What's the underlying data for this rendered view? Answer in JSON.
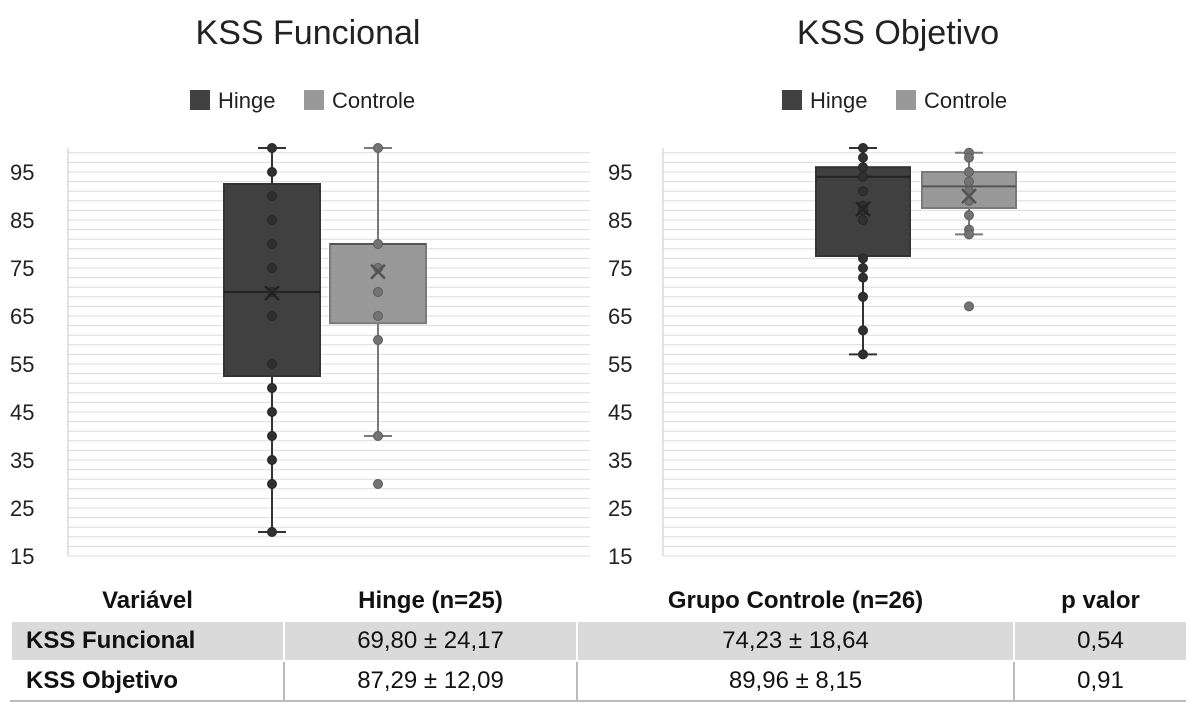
{
  "chart_data": [
    {
      "type": "box",
      "title": "KSS Funcional",
      "legend": [
        {
          "name": "Hinge",
          "color": "#404040"
        },
        {
          "name": "Controle",
          "color": "#999999"
        }
      ],
      "legend_position": "top",
      "ylim": [
        15,
        100
      ],
      "yticks": [
        15,
        25,
        35,
        45,
        55,
        65,
        75,
        85,
        95
      ],
      "grid": true,
      "series": [
        {
          "name": "Hinge",
          "color": "#404040",
          "min": 20,
          "q1": 52.5,
          "median": 70,
          "q3": 92.5,
          "max": 100,
          "mean": 69.8,
          "points": [
            100,
            95,
            90,
            85,
            80,
            75,
            70,
            65,
            55,
            50,
            45,
            40,
            35,
            30,
            20
          ]
        },
        {
          "name": "Controle",
          "color": "#999999",
          "min": 40,
          "q1": 63.5,
          "median": 80,
          "q3": 80,
          "max": 100,
          "mean": 74.23,
          "points": [
            100,
            80,
            75,
            70,
            65,
            60,
            40,
            30
          ]
        }
      ]
    },
    {
      "type": "box",
      "title": "KSS Objetivo",
      "legend": [
        {
          "name": "Hinge",
          "color": "#404040"
        },
        {
          "name": "Controle",
          "color": "#999999"
        }
      ],
      "legend_position": "top",
      "ylim": [
        15,
        100
      ],
      "yticks": [
        15,
        25,
        35,
        45,
        55,
        65,
        75,
        85,
        95
      ],
      "grid": true,
      "series": [
        {
          "name": "Hinge",
          "color": "#404040",
          "min": 57,
          "q1": 77.5,
          "median": 94,
          "q3": 96,
          "max": 100,
          "mean": 87.29,
          "points": [
            100,
            98,
            96,
            94,
            91,
            88,
            87,
            85,
            77,
            75,
            73,
            69,
            62,
            57
          ]
        },
        {
          "name": "Controle",
          "color": "#999999",
          "min": 82,
          "q1": 87.5,
          "median": 92,
          "q3": 95,
          "max": 99,
          "mean": 89.96,
          "points": [
            99,
            98,
            95,
            93,
            91,
            89,
            86,
            83,
            82,
            67
          ]
        }
      ]
    }
  ],
  "table": {
    "headers": [
      "Variável",
      "Hinge (n=25)",
      "Grupo Controle (n=26)",
      "p valor"
    ],
    "rows": [
      [
        "KSS Funcional",
        "69,80 ± 24,17",
        "74,23 ± 18,64",
        "0,54"
      ],
      [
        "KSS Objetivo",
        "87,29 ± 12,09",
        "89,96 ± 8,15",
        "0,91"
      ]
    ]
  }
}
